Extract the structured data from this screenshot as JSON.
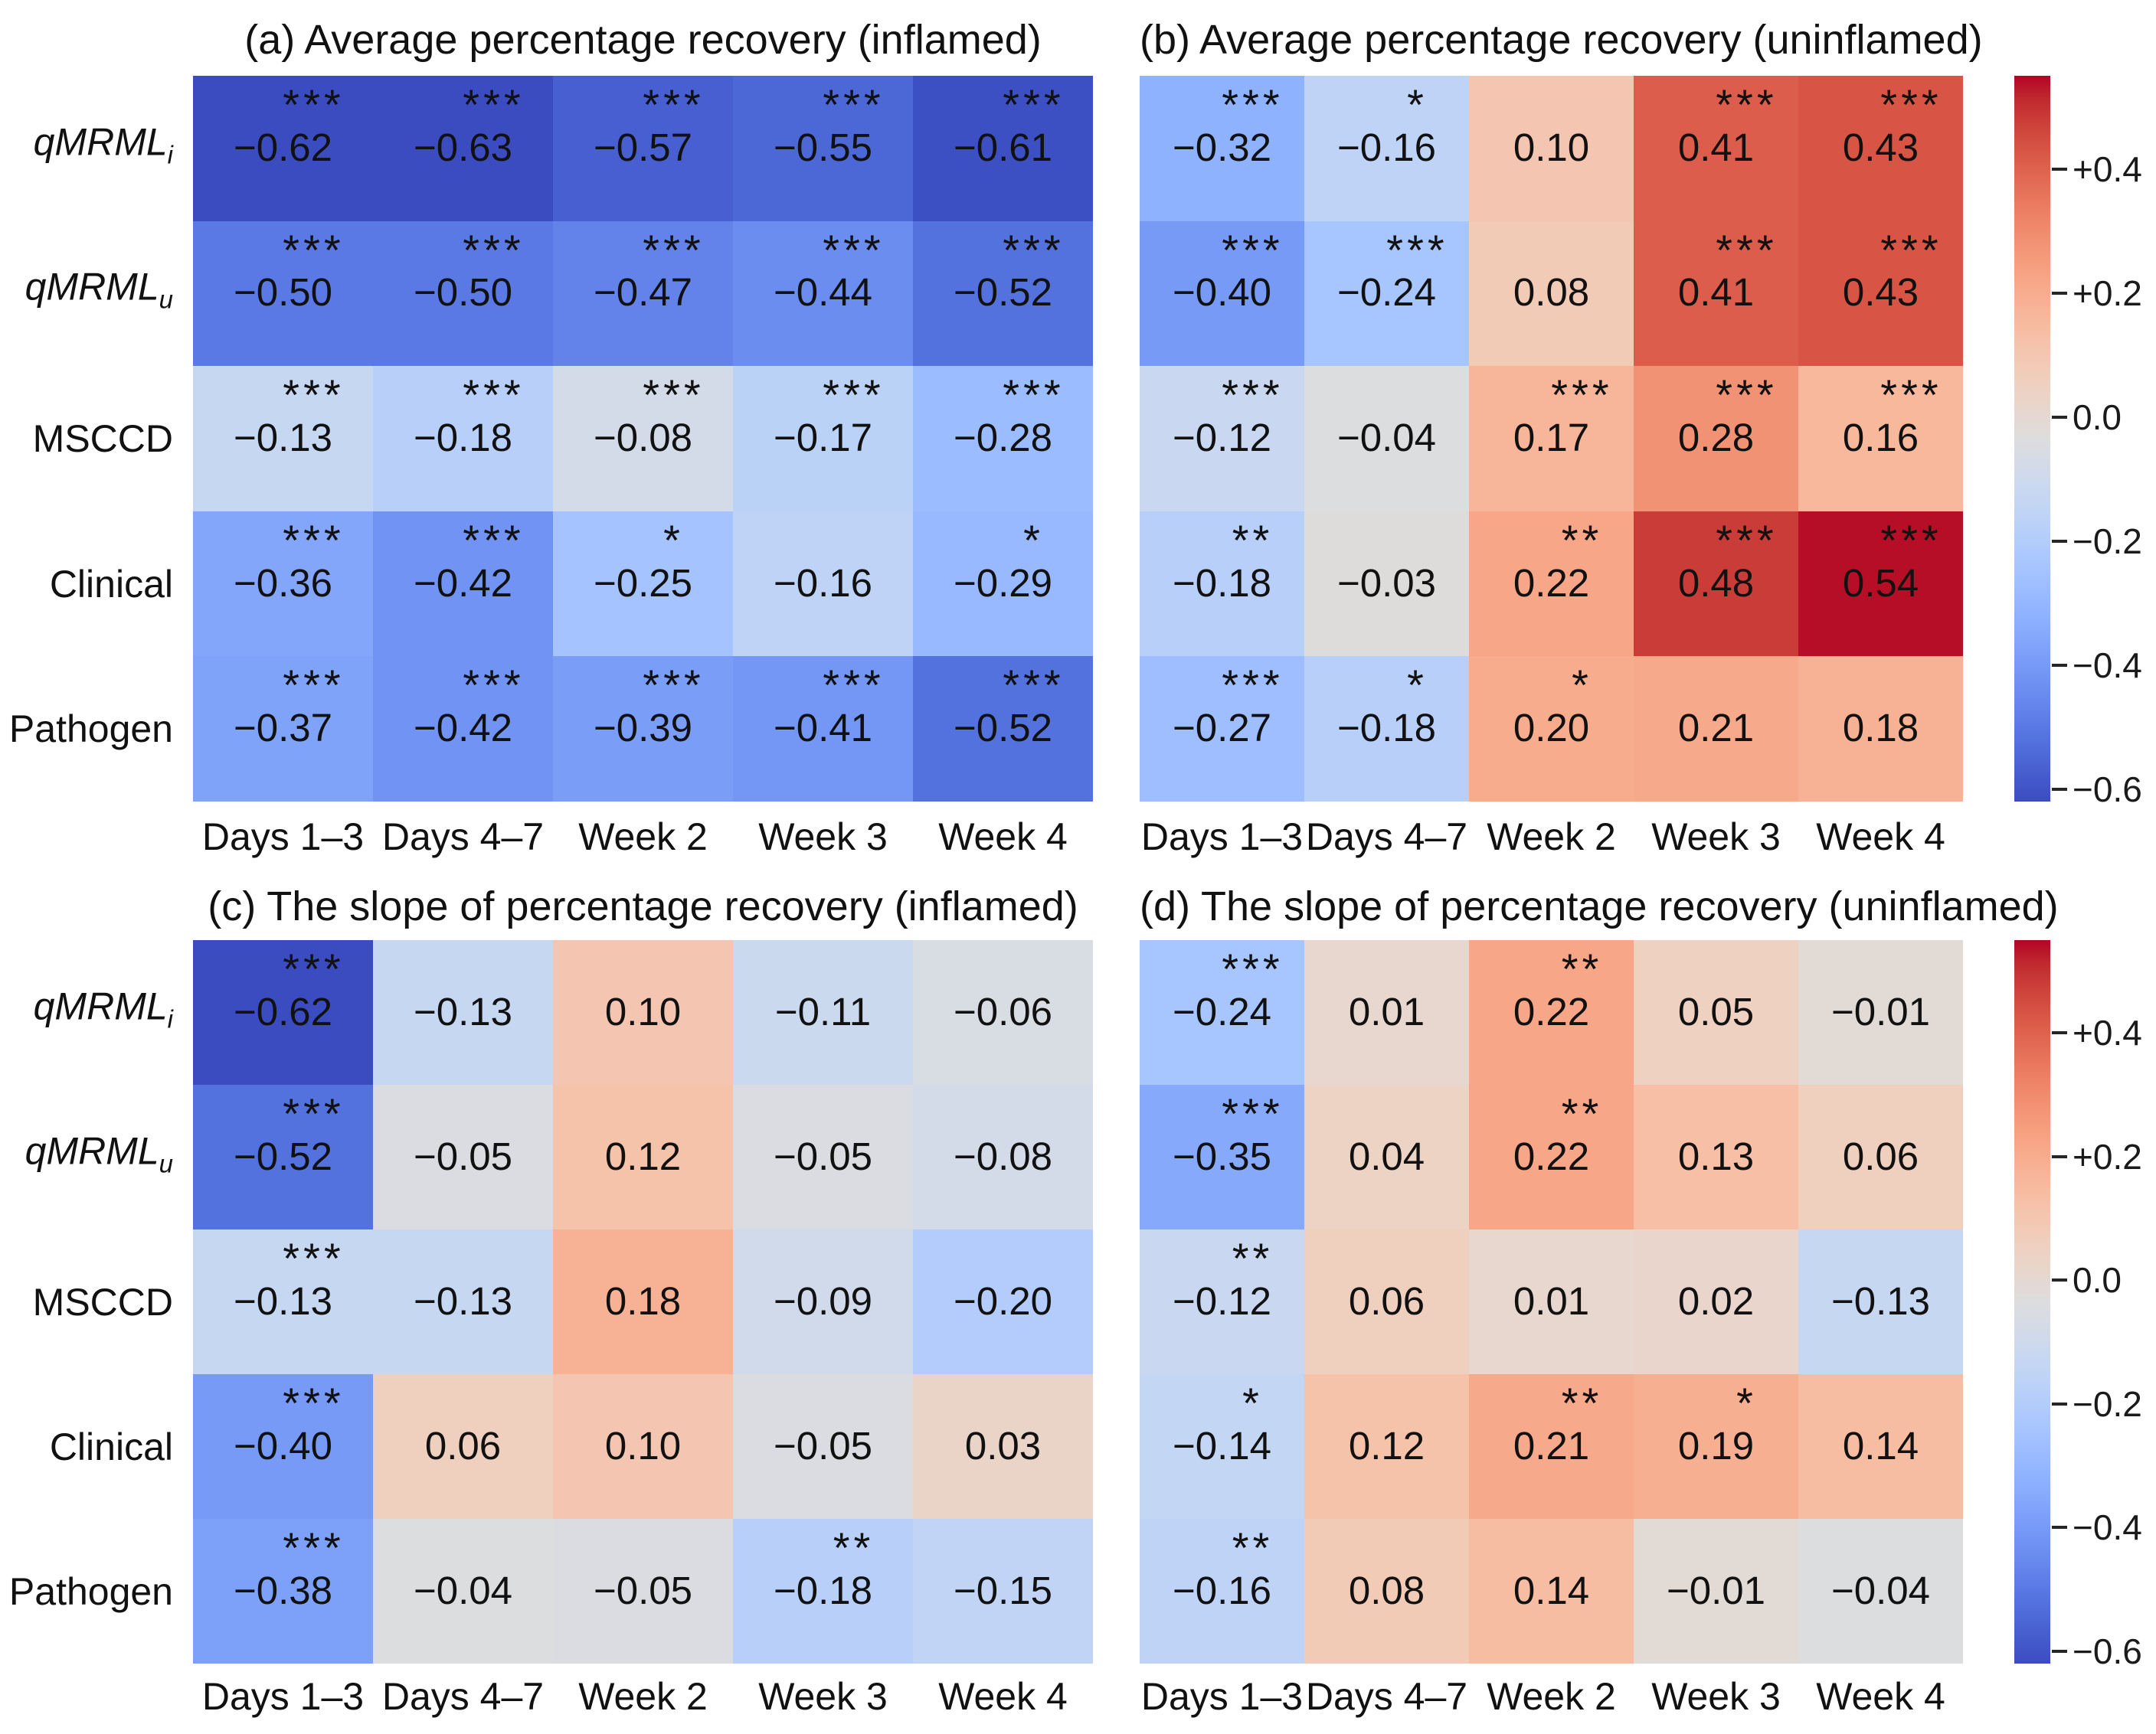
{
  "figure": {
    "background": "#ffffff",
    "text_color": "#111111"
  },
  "colormap": {
    "name": "coolwarm",
    "vmin": -0.62,
    "vmax": 0.55,
    "colors": [
      [
        59,
        76,
        192
      ],
      [
        68,
        90,
        204
      ],
      [
        77,
        104,
        215
      ],
      [
        87,
        117,
        225
      ],
      [
        98,
        130,
        234
      ],
      [
        108,
        142,
        241
      ],
      [
        119,
        154,
        247
      ],
      [
        130,
        165,
        251
      ],
      [
        141,
        176,
        254
      ],
      [
        152,
        185,
        255
      ],
      [
        163,
        194,
        255
      ],
      [
        174,
        201,
        253
      ],
      [
        184,
        208,
        249
      ],
      [
        194,
        213,
        244
      ],
      [
        204,
        217,
        238
      ],
      [
        213,
        219,
        230
      ],
      [
        221,
        221,
        221
      ],
      [
        229,
        216,
        209
      ],
      [
        236,
        211,
        197
      ],
      [
        241,
        204,
        185
      ],
      [
        245,
        196,
        173
      ],
      [
        247,
        187,
        160
      ],
      [
        247,
        177,
        148
      ],
      [
        247,
        166,
        135
      ],
      [
        244,
        154,
        123
      ],
      [
        241,
        141,
        111
      ],
      [
        236,
        127,
        99
      ],
      [
        229,
        112,
        88
      ],
      [
        222,
        96,
        77
      ],
      [
        213,
        80,
        66
      ],
      [
        203,
        62,
        56
      ],
      [
        192,
        40,
        47
      ],
      [
        180,
        4,
        38
      ]
    ]
  },
  "colorbar": {
    "ticks": [
      {
        "v": 0.4,
        "label": "+0.4"
      },
      {
        "v": 0.2,
        "label": "+0.2"
      },
      {
        "v": 0.0,
        "label": "0.0"
      },
      {
        "v": -0.2,
        "label": "−0.2"
      },
      {
        "v": -0.4,
        "label": "−0.4"
      },
      {
        "v": -0.6,
        "label": "−0.6"
      }
    ]
  },
  "chart_data": [
    {
      "id": "a",
      "type": "heatmap",
      "title": "(a) Average percentage recovery (inflamed)",
      "rows": [
        {
          "label": "qMRML",
          "sub": "i",
          "italic": true
        },
        {
          "label": "qMRML",
          "sub": "u",
          "italic": true
        },
        {
          "label": "MSCCD"
        },
        {
          "label": "Clinical"
        },
        {
          "label": "Pathogen"
        }
      ],
      "columns": [
        "Days 1–3",
        "Days 4–7",
        "Week 2",
        "Week 3",
        "Week 4"
      ],
      "values": [
        [
          -0.62,
          -0.63,
          -0.57,
          -0.55,
          -0.61
        ],
        [
          -0.5,
          -0.5,
          -0.47,
          -0.44,
          -0.52
        ],
        [
          -0.13,
          -0.18,
          -0.08,
          -0.17,
          -0.28
        ],
        [
          -0.36,
          -0.42,
          -0.25,
          -0.16,
          -0.29
        ],
        [
          -0.37,
          -0.42,
          -0.39,
          -0.41,
          -0.52
        ]
      ],
      "stars": [
        [
          "***",
          "***",
          "***",
          "***",
          "***"
        ],
        [
          "***",
          "***",
          "***",
          "***",
          "***"
        ],
        [
          "***",
          "***",
          "***",
          "***",
          "***"
        ],
        [
          "***",
          "***",
          "*",
          "",
          "*"
        ],
        [
          "***",
          "***",
          "***",
          "***",
          "***"
        ]
      ]
    },
    {
      "id": "b",
      "type": "heatmap",
      "title": "(b) Average percentage recovery (uninflamed)",
      "rows": [
        {
          "label": "qMRML",
          "sub": "i",
          "italic": true
        },
        {
          "label": "qMRML",
          "sub": "u",
          "italic": true
        },
        {
          "label": "MSCCD"
        },
        {
          "label": "Clinical"
        },
        {
          "label": "Pathogen"
        }
      ],
      "columns": [
        "Days 1–3",
        "Days 4–7",
        "Week 2",
        "Week 3",
        "Week 4"
      ],
      "values": [
        [
          -0.32,
          -0.16,
          0.1,
          0.41,
          0.43
        ],
        [
          -0.4,
          -0.24,
          0.08,
          0.41,
          0.43
        ],
        [
          -0.12,
          -0.04,
          0.17,
          0.28,
          0.16
        ],
        [
          -0.18,
          -0.03,
          0.22,
          0.48,
          0.54
        ],
        [
          -0.27,
          -0.18,
          0.2,
          0.21,
          0.18
        ]
      ],
      "stars": [
        [
          "***",
          "*",
          "",
          "***",
          "***"
        ],
        [
          "***",
          "***",
          "",
          "***",
          "***"
        ],
        [
          "***",
          "",
          "***",
          "***",
          "***"
        ],
        [
          "**",
          "",
          "**",
          "***",
          "***"
        ],
        [
          "***",
          "*",
          "*",
          "",
          ""
        ]
      ]
    },
    {
      "id": "c",
      "type": "heatmap",
      "title": "(c) The slope of percentage recovery (inflamed)",
      "rows": [
        {
          "label": "qMRML",
          "sub": "i",
          "italic": true
        },
        {
          "label": "qMRML",
          "sub": "u",
          "italic": true
        },
        {
          "label": "MSCCD"
        },
        {
          "label": "Clinical"
        },
        {
          "label": "Pathogen"
        }
      ],
      "columns": [
        "Days 1–3",
        "Days 4–7",
        "Week 2",
        "Week 3",
        "Week 4"
      ],
      "values": [
        [
          -0.62,
          -0.13,
          0.1,
          -0.11,
          -0.06
        ],
        [
          -0.52,
          -0.05,
          0.12,
          -0.05,
          -0.08
        ],
        [
          -0.13,
          -0.13,
          0.18,
          -0.09,
          -0.2
        ],
        [
          -0.4,
          0.06,
          0.1,
          -0.05,
          0.03
        ],
        [
          -0.38,
          -0.04,
          -0.05,
          -0.18,
          -0.15
        ]
      ],
      "stars": [
        [
          "***",
          "",
          "",
          "",
          ""
        ],
        [
          "***",
          "",
          "",
          "",
          ""
        ],
        [
          "***",
          "",
          "",
          "",
          ""
        ],
        [
          "***",
          "",
          "",
          "",
          ""
        ],
        [
          "***",
          "",
          "",
          "**",
          ""
        ]
      ]
    },
    {
      "id": "d",
      "type": "heatmap",
      "title": "(d) The slope of percentage recovery (uninflamed)",
      "rows": [
        {
          "label": "qMRML",
          "sub": "i",
          "italic": true
        },
        {
          "label": "qMRML",
          "sub": "u",
          "italic": true
        },
        {
          "label": "MSCCD"
        },
        {
          "label": "Clinical"
        },
        {
          "label": "Pathogen"
        }
      ],
      "columns": [
        "Days 1–3",
        "Days 4–7",
        "Week 2",
        "Week 3",
        "Week 4"
      ],
      "values": [
        [
          -0.24,
          0.01,
          0.22,
          0.05,
          -0.01
        ],
        [
          -0.35,
          0.04,
          0.22,
          0.13,
          0.06
        ],
        [
          -0.12,
          0.06,
          0.01,
          0.02,
          -0.13
        ],
        [
          -0.14,
          0.12,
          0.21,
          0.19,
          0.14
        ],
        [
          -0.16,
          0.08,
          0.14,
          -0.01,
          -0.04
        ]
      ],
      "stars": [
        [
          "***",
          "",
          "**",
          "",
          ""
        ],
        [
          "***",
          "",
          "**",
          "",
          ""
        ],
        [
          "**",
          "",
          "",
          "",
          ""
        ],
        [
          "*",
          "",
          "**",
          "*",
          ""
        ],
        [
          "**",
          "",
          "",
          "",
          ""
        ]
      ]
    }
  ]
}
